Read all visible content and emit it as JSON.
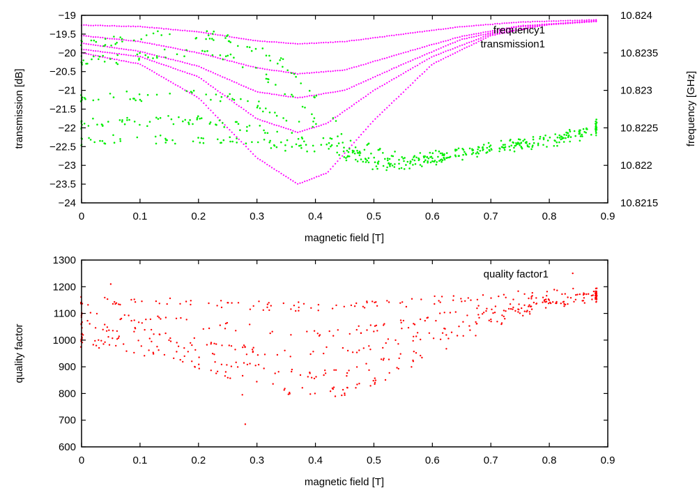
{
  "chart_data": [
    {
      "type": "scatter",
      "title": "",
      "xlabel": "magnetic field [T]",
      "ylabel": "transmission [dB]",
      "y2label": "frequency [GHz]",
      "xlim": [
        0,
        0.9
      ],
      "ylim": [
        -24,
        -19
      ],
      "y2lim": [
        10.8215,
        10.824
      ],
      "xticks": [
        "0",
        "0.1",
        "0.2",
        "0.3",
        "0.4",
        "0.5",
        "0.6",
        "0.7",
        "0.8",
        "0.9"
      ],
      "yticks": [
        "-19",
        "-19.5",
        "-20",
        "-20.5",
        "-21",
        "-21.5",
        "-22",
        "-22.5",
        "-23",
        "-23.5",
        "-24"
      ],
      "y2ticks": [
        "10.824",
        "10.8235",
        "10.823",
        "10.8225",
        "10.822",
        "10.8215"
      ],
      "legend_position": "top-right",
      "grid": false,
      "series": [
        {
          "name": "frequency1",
          "color": "#ff00ff",
          "axis": "y2",
          "description": "five sweep branches dipping near 0.37 T",
          "branches": [
            {
              "x": [
                0,
                0.1,
                0.2,
                0.3,
                0.37,
                0.45,
                0.55,
                0.65,
                0.75,
                0.88
              ],
              "y": [
                10.82387,
                10.82385,
                10.82378,
                10.82366,
                10.82362,
                10.82365,
                10.82375,
                10.82385,
                10.82391,
                10.82394
              ]
            },
            {
              "x": [
                0,
                0.1,
                0.2,
                0.3,
                0.37,
                0.45,
                0.55,
                0.65,
                0.75,
                0.88
              ],
              "y": [
                10.82373,
                10.82365,
                10.8235,
                10.8233,
                10.82322,
                10.82327,
                10.8235,
                10.82372,
                10.82386,
                10.82392
              ]
            },
            {
              "x": [
                0,
                0.1,
                0.2,
                0.3,
                0.37,
                0.45,
                0.55,
                0.65,
                0.75,
                0.88
              ],
              "y": [
                10.82363,
                10.82352,
                10.82332,
                10.82298,
                10.8229,
                10.823,
                10.82335,
                10.82368,
                10.82385,
                10.82392
              ]
            },
            {
              "x": [
                0,
                0.1,
                0.2,
                0.3,
                0.37,
                0.42,
                0.5,
                0.6,
                0.7,
                0.8,
                0.88
              ],
              "y": [
                10.82355,
                10.82345,
                10.82318,
                10.82262,
                10.82244,
                10.82256,
                10.823,
                10.82345,
                10.82375,
                10.82388,
                10.82393
              ]
            },
            {
              "x": [
                0,
                0.1,
                0.2,
                0.3,
                0.37,
                0.42,
                0.5,
                0.6,
                0.7,
                0.8,
                0.88
              ],
              "y": [
                10.8235,
                10.82335,
                10.8229,
                10.8221,
                10.82175,
                10.8219,
                10.8226,
                10.82335,
                10.82373,
                10.82388,
                10.82392
              ]
            }
          ]
        },
        {
          "name": "transmission1",
          "color": "#00ee00",
          "axis": "y",
          "description": "scattered points, bands near -20 to -22.4 dB at low field, converging to about -22.7 dB near 0.5 T then rising to about -22 dB at 0.88 T",
          "x": [
            0,
            0.05,
            0.1,
            0.15,
            0.2,
            0.25,
            0.3,
            0.35,
            0.4,
            0.45,
            0.5,
            0.55,
            0.6,
            0.65,
            0.7,
            0.75,
            0.8,
            0.85,
            0.88
          ],
          "y_bands": [
            [
              -19.8,
              -19.7,
              -19.6,
              -19.5,
              -19.5,
              -19.6,
              -19.9,
              -20.3,
              -21.2,
              -22.2,
              -22.6,
              -22.8,
              -22.75,
              -22.6,
              -22.5,
              -22.4,
              -22.3,
              -22.1,
              -21.9
            ],
            [
              -20.2,
              -20.2,
              -20.1,
              -20.0,
              -20.0,
              -20.1,
              -20.5,
              -21.0,
              -21.8,
              -22.5,
              -22.8,
              -22.9,
              -22.8,
              -22.7,
              -22.5,
              -22.4,
              -22.3,
              -22.15,
              -22.0
            ],
            [
              -21.2,
              -21.1,
              -21.2,
              -21.1,
              -21.1,
              -21.2,
              -21.4,
              -21.7,
              -22.1,
              -22.6,
              -22.9,
              -23.0,
              -22.85,
              -22.7,
              -22.55,
              -22.45,
              -22.3,
              -22.2,
              -22.0
            ],
            [
              -21.9,
              -21.8,
              -21.9,
              -21.8,
              -21.8,
              -21.9,
              -22.0,
              -22.2,
              -22.4,
              -22.7,
              -22.9,
              -23.0,
              -22.85,
              -22.7,
              -22.6,
              -22.45,
              -22.35,
              -22.2,
              -22.05
            ],
            [
              -22.4,
              -22.3,
              -22.35,
              -22.3,
              -22.3,
              -22.3,
              -22.4,
              -22.5,
              -22.6,
              -22.8,
              -23.0,
              -23.05,
              -22.9,
              -22.75,
              -22.6,
              -22.5,
              -22.4,
              -22.25,
              -22.1
            ]
          ]
        }
      ]
    },
    {
      "type": "scatter",
      "title": "",
      "xlabel": "magnetic field [T]",
      "ylabel": "quality factor",
      "xlim": [
        0,
        0.9
      ],
      "ylim": [
        600,
        1300
      ],
      "xticks": [
        "0",
        "0.1",
        "0.2",
        "0.3",
        "0.4",
        "0.5",
        "0.6",
        "0.7",
        "0.8",
        "0.9"
      ],
      "yticks": [
        "1300",
        "1200",
        "1100",
        "1000",
        "900",
        "800",
        "700",
        "600"
      ],
      "legend_position": "top-right",
      "grid": false,
      "series": [
        {
          "name": "quality factor1",
          "color": "#ff0000",
          "description": "scattered points in bands, minimum near 0.35-0.4 T, rising to about 1160 at 0.88 T",
          "x": [
            0,
            0.05,
            0.1,
            0.15,
            0.2,
            0.25,
            0.3,
            0.35,
            0.4,
            0.45,
            0.5,
            0.55,
            0.6,
            0.65,
            0.7,
            0.75,
            0.8,
            0.85,
            0.88
          ],
          "y_bands": [
            [
              1150,
              1145,
              1140,
              1140,
              1135,
              1130,
              1130,
              1125,
              1125,
              1125,
              1130,
              1140,
              1150,
              1160,
              1170,
              1175,
              1180,
              1180,
              1180
            ],
            [
              1090,
              1085,
              1075,
              1070,
              1060,
              1050,
              1040,
              1030,
              1030,
              1035,
              1045,
              1060,
              1080,
              1100,
              1120,
              1140,
              1155,
              1165,
              1170
            ],
            [
              1050,
              1040,
              1030,
              1010,
              990,
              970,
              960,
              955,
              955,
              960,
              975,
              1000,
              1030,
              1060,
              1095,
              1125,
              1145,
              1160,
              1165
            ],
            [
              1010,
              1000,
              990,
              970,
              945,
              920,
              895,
              875,
              870,
              880,
              905,
              940,
              990,
              1030,
              1075,
              1110,
              1140,
              1155,
              1160
            ],
            [
              990,
              975,
              960,
              940,
              910,
              875,
              845,
              815,
              800,
              810,
              840,
              890,
              950,
              1010,
              1060,
              1105,
              1135,
              1150,
              1160
            ]
          ],
          "outliers": [
            {
              "x": 0.28,
              "y": 685
            },
            {
              "x": 0.84,
              "y": 1250
            },
            {
              "x": 0.05,
              "y": 1210
            },
            {
              "x": 0.275,
              "y": 795
            }
          ]
        }
      ]
    }
  ]
}
